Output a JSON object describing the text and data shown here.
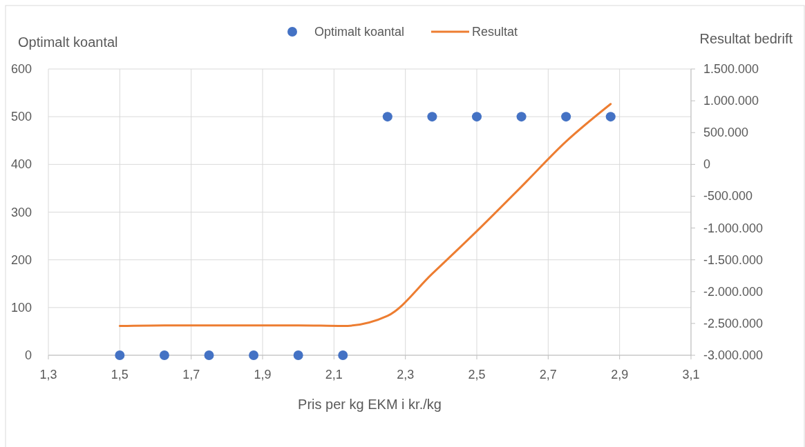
{
  "chart_data": {
    "type": "scatter",
    "xlabel": "Pris per kg EKM i kr./kg",
    "ylabel": "Optimalt koantal",
    "y2label": "Resultat bedrift",
    "x": [
      1.5,
      1.625,
      1.75,
      1.875,
      2.0,
      2.125,
      2.25,
      2.375,
      2.5,
      2.625,
      2.75,
      2.875
    ],
    "series": [
      {
        "name": "Optimalt koantal",
        "color": "#4472c4",
        "marker": "circle",
        "values": [
          0,
          0,
          0,
          0,
          0,
          0,
          500,
          500,
          500,
          500,
          500,
          500
        ]
      },
      {
        "name": "Resultat",
        "type": "line",
        "axis": "y2",
        "color": "#ed7d31",
        "marker": "none",
        "line_style": "solid",
        "values": [
          -2540000,
          -2530000,
          -2530000,
          -2530000,
          -2530000,
          -2540000,
          -2380000,
          -1720000,
          -1050000,
          -350000,
          360000,
          950000
        ]
      }
    ],
    "xlim": [
      1.3,
      3.1
    ],
    "xticks": [
      {
        "value": 1.3,
        "label": "1,3"
      },
      {
        "value": 1.5,
        "label": "1,5"
      },
      {
        "value": 1.7,
        "label": "1,7"
      },
      {
        "value": 1.9,
        "label": "1,9"
      },
      {
        "value": 2.1,
        "label": "2,1"
      },
      {
        "value": 2.3,
        "label": "2,3"
      },
      {
        "value": 2.5,
        "label": "2,5"
      },
      {
        "value": 2.7,
        "label": "2,7"
      },
      {
        "value": 2.9,
        "label": "2,9"
      },
      {
        "value": 3.1,
        "label": "3,1"
      }
    ],
    "ylim": [
      0,
      600
    ],
    "yticks": [
      0,
      100,
      200,
      300,
      400,
      500,
      600
    ],
    "y2lim": [
      -3000000,
      1500000
    ],
    "y2ticks": [
      {
        "value": -3000000,
        "label": "-3.000.000"
      },
      {
        "value": -2500000,
        "label": "-2.500.000"
      },
      {
        "value": -2000000,
        "label": "-2.000.000"
      },
      {
        "value": -1500000,
        "label": "-1.500.000"
      },
      {
        "value": -1000000,
        "label": "-1.000.000"
      },
      {
        "value": -500000,
        "label": "-500.000"
      },
      {
        "value": 0,
        "label": "0"
      },
      {
        "value": 500000,
        "label": "500.000"
      },
      {
        "value": 1000000,
        "label": "1.000.000"
      },
      {
        "value": 1500000,
        "label": "1.500.000"
      }
    ],
    "grid": true,
    "legend": "top"
  }
}
